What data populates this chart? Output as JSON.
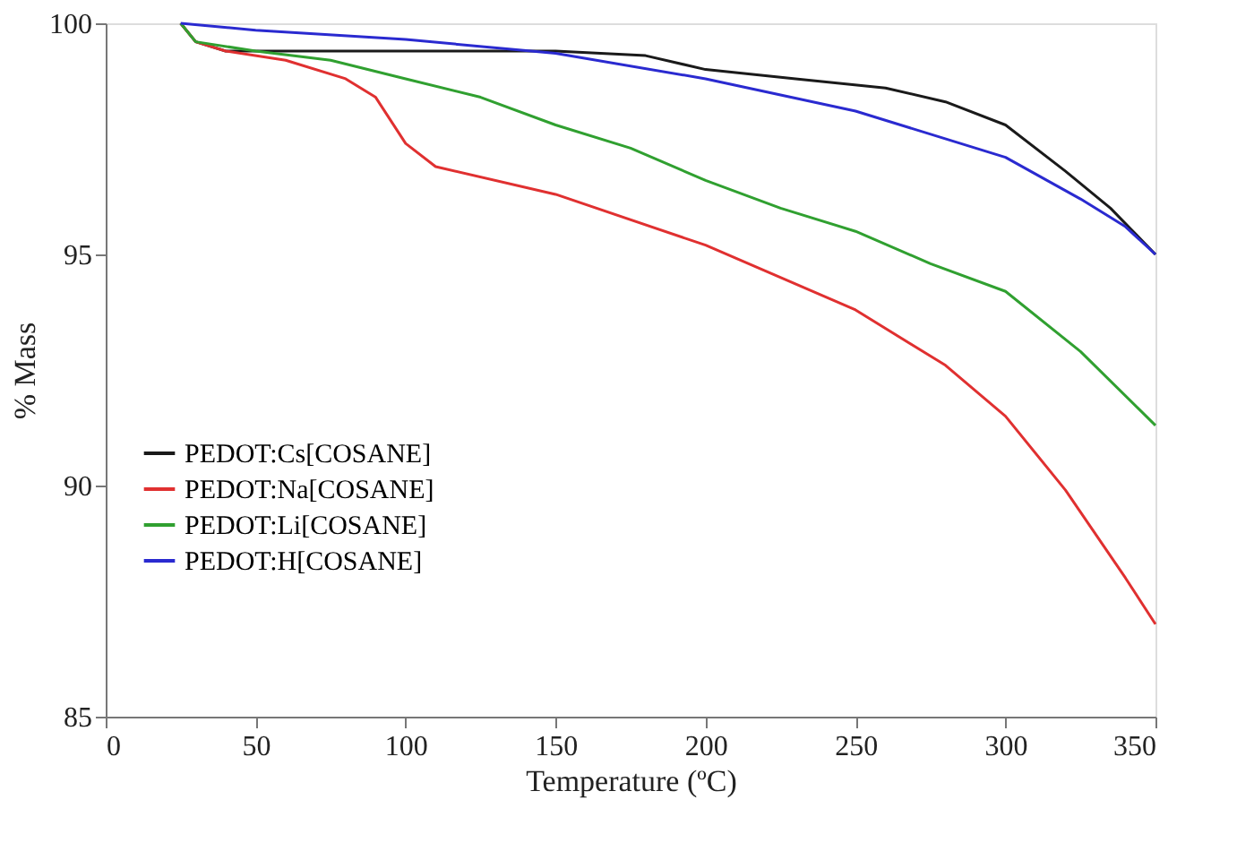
{
  "chart_data": {
    "type": "line",
    "xlabel": "Temperature (ºC)",
    "ylabel": "% Mass",
    "xlim": [
      0,
      350
    ],
    "xticks": [
      0,
      50,
      100,
      150,
      200,
      250,
      300,
      350
    ],
    "ylim": [
      85,
      100
    ],
    "yticks": [
      85,
      90,
      95,
      100
    ],
    "grid": false,
    "legend": "left",
    "marker": "none",
    "line_style": "solid",
    "series": [
      {
        "name": "PEDOT:Cs[COSANE]",
        "color": "#1a1a1a",
        "x": [
          25,
          30,
          40,
          100,
          150,
          180,
          200,
          230,
          260,
          280,
          300,
          320,
          335,
          350
        ],
        "values": [
          100,
          99.6,
          99.4,
          99.4,
          99.4,
          99.3,
          99.0,
          98.8,
          98.6,
          98.3,
          97.8,
          96.8,
          96.0,
          95.0
        ]
      },
      {
        "name": "PEDOT:Na[COSANE]",
        "color": "#e03030",
        "x": [
          25,
          30,
          40,
          60,
          80,
          90,
          100,
          110,
          150,
          200,
          250,
          280,
          300,
          320,
          340,
          350
        ],
        "values": [
          100,
          99.6,
          99.4,
          99.2,
          98.8,
          98.4,
          97.4,
          96.9,
          96.3,
          95.2,
          93.8,
          92.6,
          91.5,
          89.9,
          88.0,
          87.0
        ]
      },
      {
        "name": "PEDOT:Li[COSANE]",
        "color": "#30a030",
        "x": [
          25,
          30,
          50,
          75,
          100,
          125,
          150,
          175,
          200,
          225,
          250,
          275,
          300,
          325,
          350
        ],
        "values": [
          100,
          99.6,
          99.4,
          99.2,
          98.8,
          98.4,
          97.8,
          97.3,
          96.6,
          96.0,
          95.5,
          94.8,
          94.2,
          92.9,
          91.3
        ]
      },
      {
        "name": "PEDOT:H[COSANE]",
        "color": "#2a2ad0",
        "x": [
          25,
          50,
          100,
          150,
          200,
          250,
          300,
          325,
          340,
          350
        ],
        "values": [
          100,
          99.85,
          99.65,
          99.35,
          98.8,
          98.1,
          97.1,
          96.2,
          95.6,
          95.0
        ]
      }
    ]
  }
}
